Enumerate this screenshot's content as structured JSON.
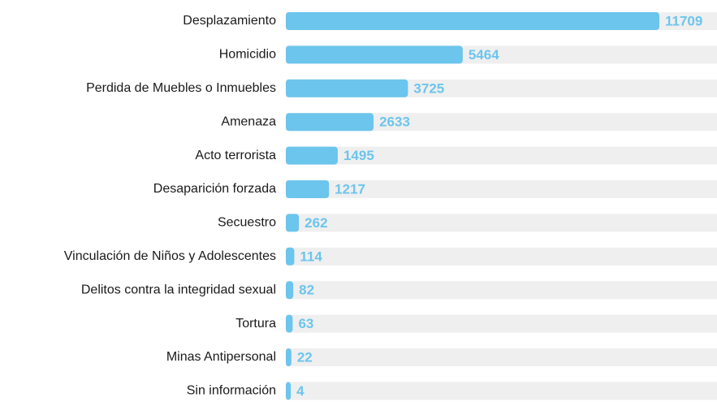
{
  "chart_data": {
    "type": "bar",
    "orientation": "horizontal",
    "categories": [
      "Desplazamiento",
      "Homicidio",
      "Perdida de Muebles o Inmuebles",
      "Amenaza",
      "Acto terrorista",
      "Desaparición forzada",
      "Secuestro",
      "Vinculación de Niños y Adolescentes",
      "Delitos contra la integridad sexual",
      "Tortura",
      "Minas Antipersonal",
      "Sin información"
    ],
    "values": [
      11709,
      5464,
      3725,
      2633,
      1495,
      1217,
      262,
      114,
      82,
      63,
      22,
      4
    ],
    "color": "#6cc5ec",
    "track_color": "#efefef"
  }
}
